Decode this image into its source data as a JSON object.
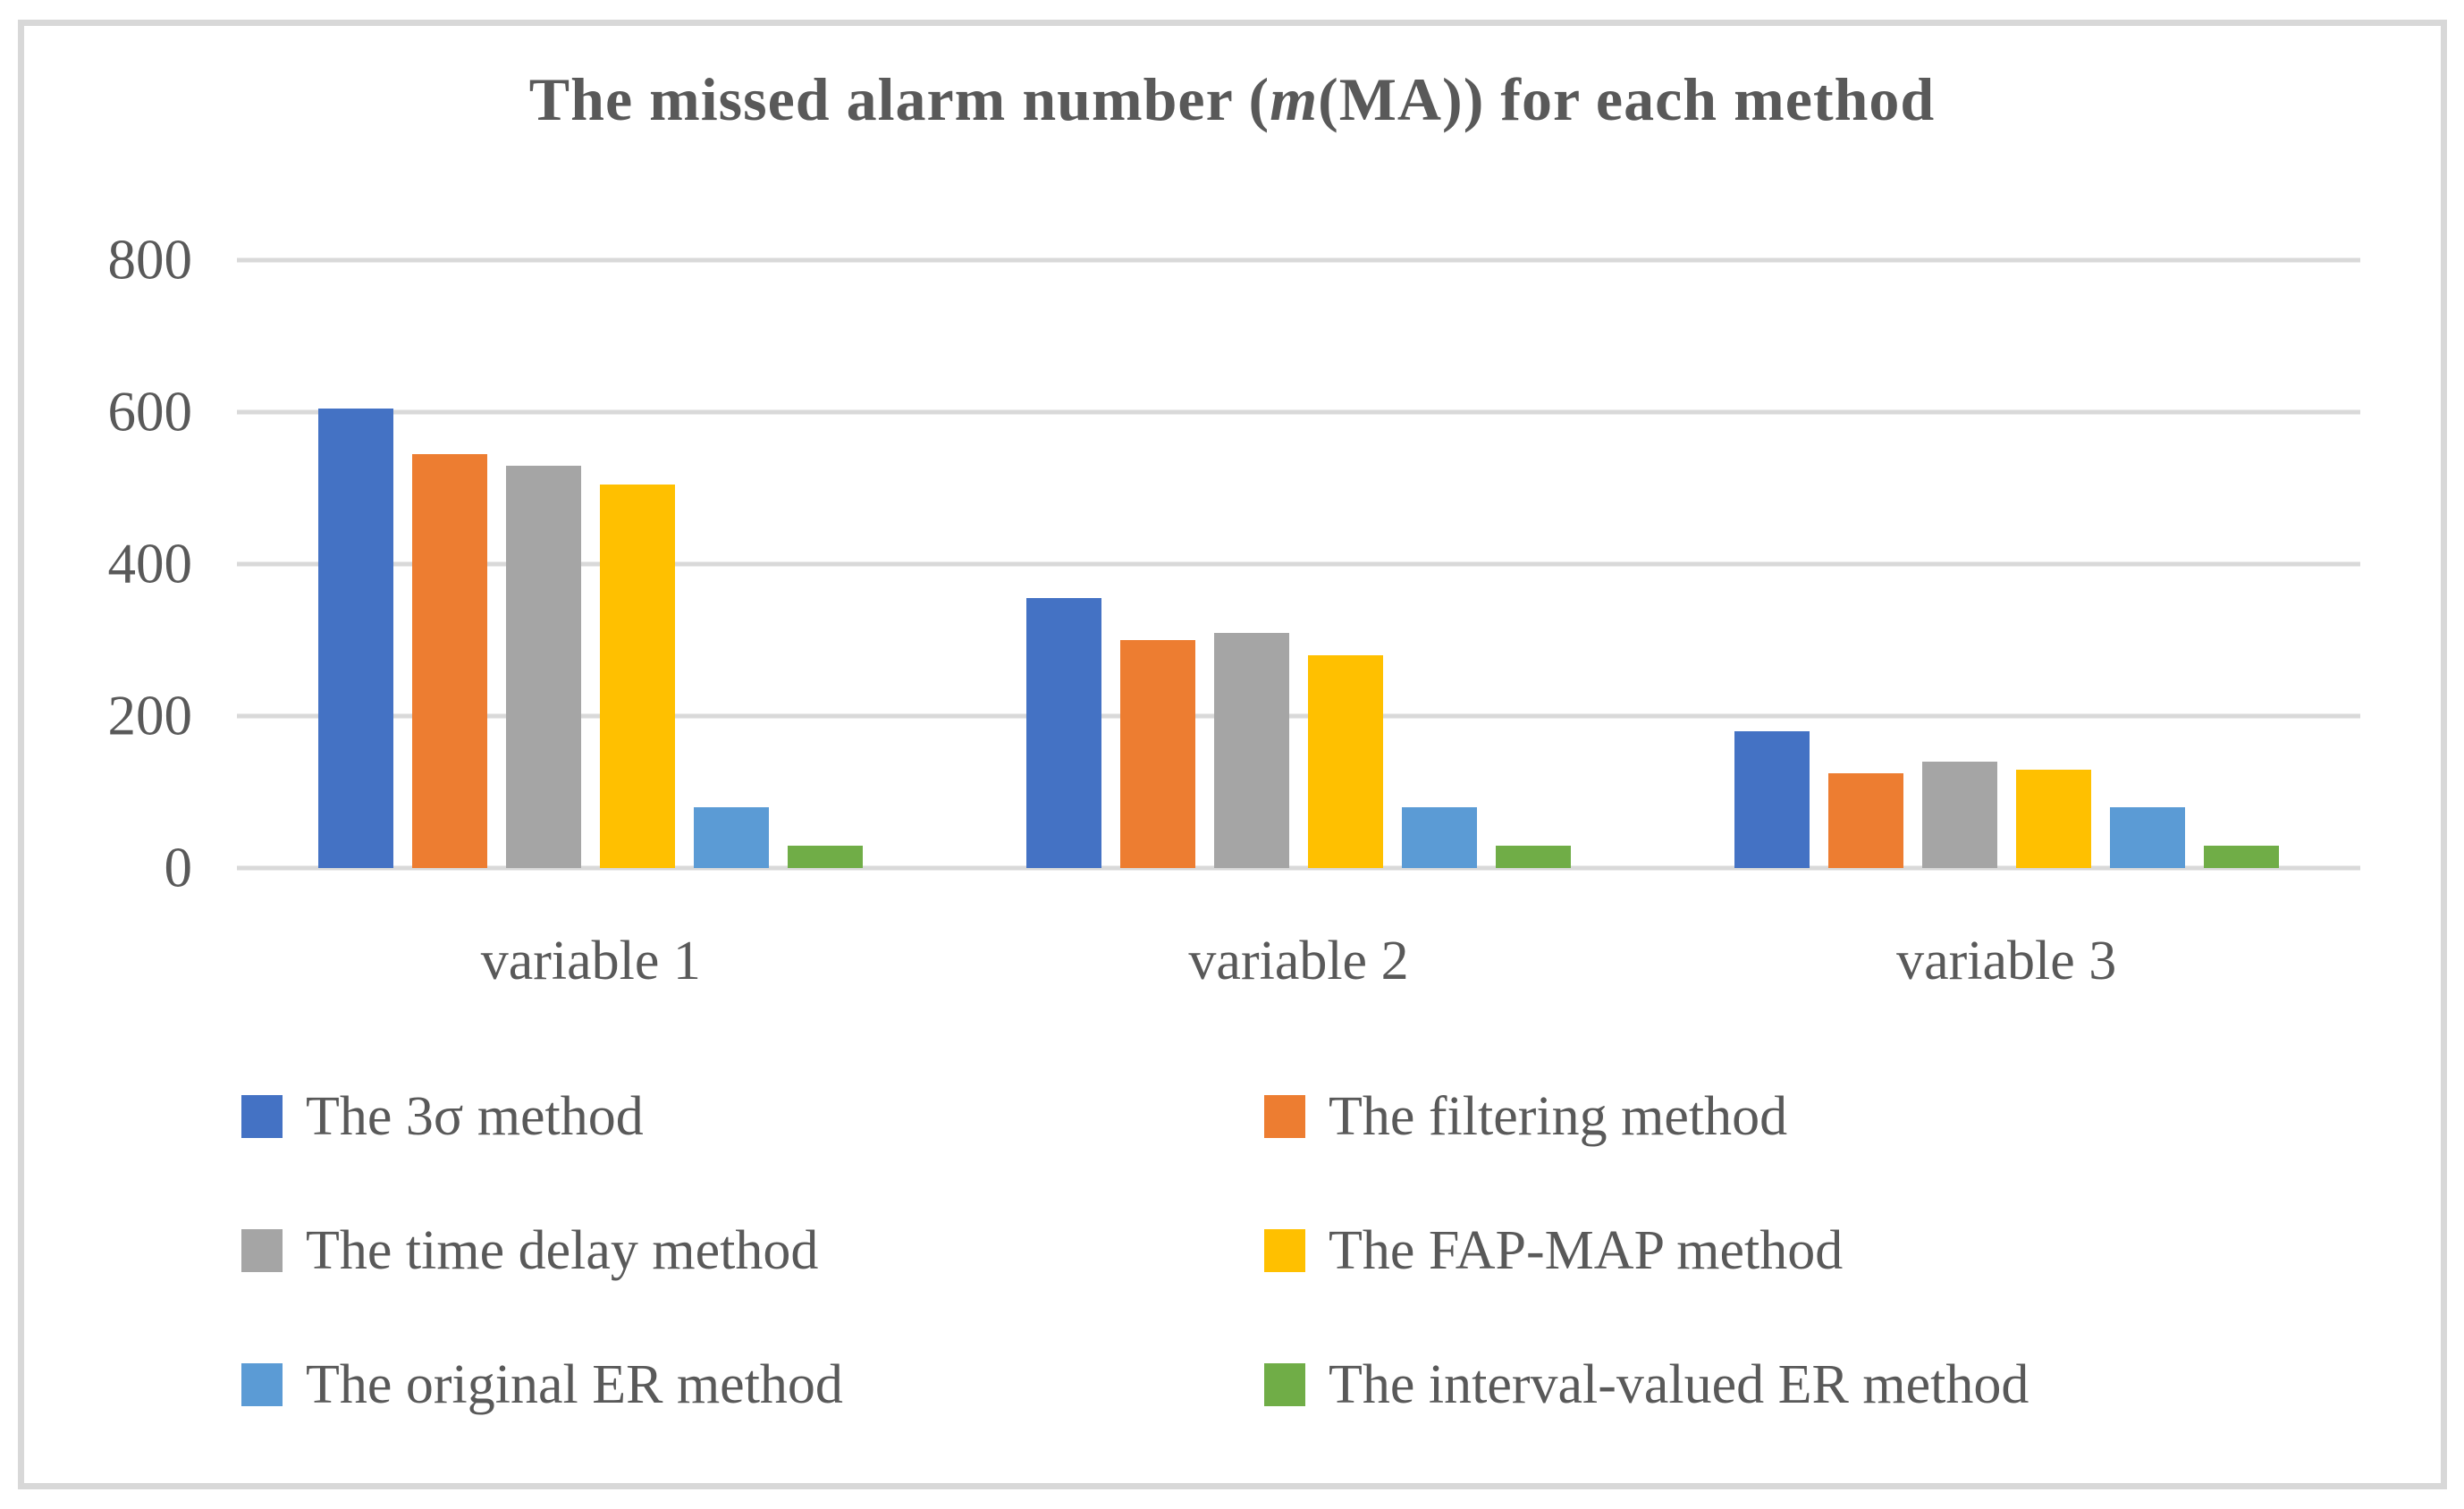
{
  "title": {
    "prefix": "The missed alarm number (",
    "italic": "m",
    "suffix": "(MA)) for each method"
  },
  "colors": {
    "text": "#595959",
    "gridline": "#d9d9d9",
    "frame_border": "#d8d8d8",
    "background": "#ffffff"
  },
  "chart_data": {
    "type": "bar",
    "title": "The missed alarm number (m(MA)) for each method",
    "categories": [
      "variable 1",
      "variable 2",
      "variable 3"
    ],
    "series": [
      {
        "name": "The 3σ method",
        "color": "#4472C4",
        "values": [
          605,
          355,
          180
        ]
      },
      {
        "name": "The filtering method",
        "color": "#ED7D31",
        "values": [
          545,
          300,
          125
        ]
      },
      {
        "name": "The time delay method",
        "color": "#A5A5A5",
        "values": [
          530,
          310,
          140
        ]
      },
      {
        "name": "The FAP-MAP method",
        "color": "#FFC000",
        "values": [
          505,
          280,
          130
        ]
      },
      {
        "name": "The original ER method",
        "color": "#5B9BD5",
        "values": [
          80,
          80,
          80
        ]
      },
      {
        "name": "The interval-valued ER method",
        "color": "#70AD47",
        "values": [
          30,
          30,
          30
        ]
      }
    ],
    "y_ticks": [
      0,
      200,
      400,
      600,
      800
    ],
    "ylim": [
      0,
      800
    ],
    "xlabel": "",
    "ylabel": "",
    "grid": true,
    "legend_position": "bottom"
  }
}
